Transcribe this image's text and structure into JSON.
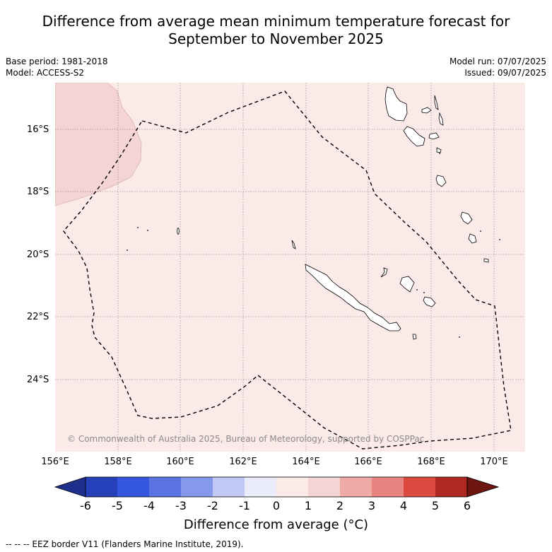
{
  "title": {
    "line1": "Difference from average mean minimum temperature forecast for",
    "line2": "September to November 2025"
  },
  "meta": {
    "base_period": "Base period: 1981-2018",
    "model": "Model: ACCESS-S2",
    "model_run": "Model run: 07/07/2025",
    "issued": "Issued: 09/07/2025"
  },
  "map": {
    "lat_labels": [
      "16°S",
      "18°S",
      "20°S",
      "22°S",
      "24°S"
    ],
    "lon_labels": [
      "156°E",
      "158°E",
      "160°E",
      "162°E",
      "164°E",
      "166°E",
      "168°E",
      "170°E"
    ],
    "background_color": "#fbeae8",
    "anomaly_patch_color": "#f4d5d3",
    "copyright": "© Commonwealth of Australia 2025, Bureau of Meteorology, supported by COSPPac"
  },
  "colorbar": {
    "ticks": [
      "-6",
      "-5",
      "-4",
      "-3",
      "-2",
      "-1",
      "0",
      "1",
      "2",
      "3",
      "4",
      "5",
      "6"
    ],
    "colors": [
      "#1f2f8c",
      "#2540b8",
      "#3556de",
      "#5a74e4",
      "#8599ea",
      "#c0c8f3",
      "#eaecfb",
      "#fbeae8",
      "#f4d5d3",
      "#efaaa7",
      "#e88580",
      "#dd4a3f",
      "#ae2920",
      "#6e1510"
    ],
    "label": "Difference from average (°C)"
  },
  "footnote": "--  --  -- EEZ border V11 (Flanders Marine Institute, 2019)."
}
